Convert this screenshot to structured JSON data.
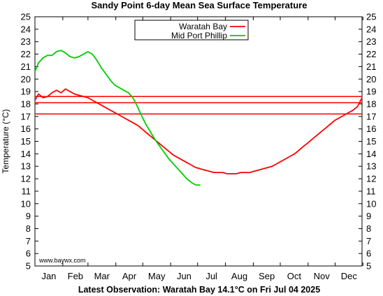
{
  "chart_data": {
    "type": "line",
    "title": "Sandy Point 6-day Mean Sea Surface Temperature",
    "ylabel": "Temperature (°C)",
    "footer": "Latest Observation: Waratah Bay 14.1°C on Fri Jul 04 2025",
    "credit": "www.baywx.com",
    "ylim": [
      5,
      25
    ],
    "y_ticks": [
      "5",
      "6",
      "7",
      "8",
      "9",
      "10",
      "11",
      "12",
      "13",
      "14",
      "15",
      "16",
      "17",
      "18",
      "19",
      "20",
      "21",
      "22",
      "23",
      "24",
      "25"
    ],
    "x_categories": [
      "Jan",
      "Feb",
      "Mar",
      "Apr",
      "May",
      "Jun",
      "Jul",
      "Aug",
      "Sep",
      "Oct",
      "Nov",
      "Dec"
    ],
    "grid": false,
    "legend_position": "top-center",
    "reference_lines": [
      18.6,
      18.1,
      17.2
    ],
    "series": [
      {
        "name": "Waratah Bay",
        "color": "#ff0000",
        "x": [
          1,
          5,
          10,
          15,
          20,
          25,
          30,
          35,
          40,
          45,
          50,
          55,
          60,
          65,
          70,
          75,
          80,
          85,
          90,
          95,
          100,
          105,
          110,
          115,
          120,
          125,
          130,
          135,
          140,
          145,
          150,
          155,
          160,
          165,
          170,
          175,
          180,
          185,
          190,
          195,
          200,
          205,
          210,
          215,
          220,
          225,
          230,
          235,
          240,
          245,
          250,
          255,
          260,
          265,
          270,
          275,
          280,
          285,
          290,
          295,
          300,
          305,
          310,
          315,
          320,
          325,
          330,
          335,
          340,
          345,
          350,
          355,
          360,
          365
        ],
        "values": [
          18.3,
          18.8,
          18.5,
          18.6,
          18.9,
          19.1,
          18.9,
          19.2,
          19.0,
          18.8,
          18.7,
          18.6,
          18.5,
          18.3,
          18.1,
          17.9,
          17.7,
          17.5,
          17.3,
          17.1,
          16.9,
          16.7,
          16.5,
          16.3,
          16.0,
          15.7,
          15.4,
          15.1,
          14.8,
          14.5,
          14.2,
          13.9,
          13.7,
          13.5,
          13.3,
          13.1,
          12.9,
          12.8,
          12.7,
          12.6,
          12.5,
          12.5,
          12.5,
          12.4,
          12.4,
          12.4,
          12.5,
          12.5,
          12.5,
          12.6,
          12.7,
          12.8,
          12.9,
          13.0,
          13.2,
          13.4,
          13.6,
          13.8,
          14.0,
          14.3,
          14.6,
          14.9,
          15.2,
          15.5,
          15.8,
          16.1,
          16.4,
          16.7,
          16.9,
          17.1,
          17.3,
          17.5,
          17.8,
          18.5
        ]
      },
      {
        "name": "Mid Port Phillip",
        "color": "#00cc00",
        "x": [
          1,
          5,
          10,
          15,
          20,
          25,
          30,
          35,
          40,
          45,
          50,
          55,
          60,
          65,
          70,
          75,
          80,
          85,
          90,
          95,
          100,
          105,
          110,
          115,
          120,
          125,
          130,
          135,
          140,
          145,
          150,
          155,
          160,
          165,
          170,
          175,
          180,
          185
        ],
        "values": [
          20.6,
          21.3,
          21.7,
          21.9,
          21.9,
          22.2,
          22.3,
          22.1,
          21.8,
          21.7,
          21.8,
          22.0,
          22.2,
          22.0,
          21.5,
          20.9,
          20.4,
          19.9,
          19.5,
          19.3,
          19.1,
          18.9,
          18.5,
          17.8,
          17.0,
          16.3,
          15.7,
          15.1,
          14.6,
          14.1,
          13.6,
          13.2,
          12.8,
          12.4,
          12.0,
          11.7,
          11.5,
          11.5
        ]
      }
    ]
  }
}
